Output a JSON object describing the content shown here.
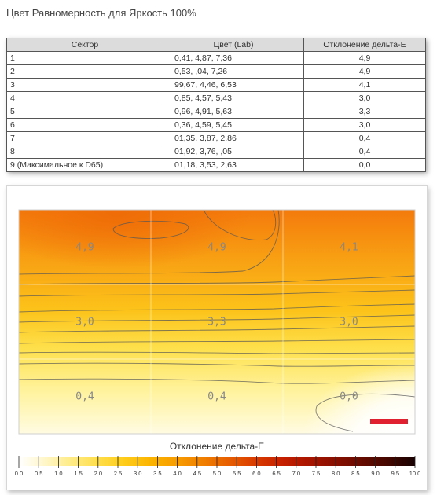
{
  "title": "Цвет Равномерность для Яркость 100%",
  "table": {
    "headers": [
      "Сектор",
      "Цвет (Lab)",
      "Отклонение дельта-E"
    ],
    "rows": [
      {
        "sector": "1",
        "lab": "0,41,   4,87,   7,36",
        "de": "4,9"
      },
      {
        "sector": "2",
        "lab": "0,53,   ,04,   7,26",
        "de": "4,9"
      },
      {
        "sector": "3",
        "lab": "99,67,   4,46,   6,53",
        "de": "4,1"
      },
      {
        "sector": "4",
        "lab": "0,85,   4,57,   5,43",
        "de": "3,0"
      },
      {
        "sector": "5",
        "lab": "0,96,   4,91,   5,63",
        "de": "3,3"
      },
      {
        "sector": "6",
        "lab": "0,36,   4,59,   5,45",
        "de": "3,0"
      },
      {
        "sector": "7",
        "lab": "01,35,   3,87,   2,86",
        "de": "0,4"
      },
      {
        "sector": "8",
        "lab": "01,92,   3,76,    ,05",
        "de": "0,4"
      },
      {
        "sector": "9 (Максимальное к D65)",
        "lab": "01,18,   3,53,   2,63",
        "de": "0,0"
      }
    ]
  },
  "chart_data": {
    "type": "heatmap",
    "grid": {
      "rows": 3,
      "cols": 3
    },
    "sector_values": [
      [
        4.9,
        4.9,
        4.1
      ],
      [
        3.0,
        3.3,
        3.0
      ],
      [
        0.4,
        0.4,
        0.0
      ]
    ],
    "sector_labels": [
      [
        "4,9",
        "4,9",
        "4,1"
      ],
      [
        "3,0",
        "3,3",
        "3,0"
      ],
      [
        "0,4",
        "0,4",
        "0,0"
      ]
    ],
    "colorbar": {
      "title": "Отклонение дельта-E",
      "min": 0.0,
      "max": 10.0,
      "ticks": [
        "0.0",
        "0.5",
        "1.0",
        "1.5",
        "2.0",
        "2.5",
        "3.0",
        "3.5",
        "4.0",
        "4.5",
        "5.0",
        "5.5",
        "6.0",
        "6.5",
        "7.0",
        "7.5",
        "8.0",
        "8.5",
        "9.0",
        "9.5",
        "10.0"
      ],
      "colors": [
        "#ffffff",
        "#fff6c8",
        "#ffeb85",
        "#ffde4a",
        "#ffcc1a",
        "#fbb400",
        "#f79c00",
        "#f07e00",
        "#e65c00",
        "#d93a00",
        "#c51f00",
        "#a81500",
        "#880f00",
        "#650b00",
        "#420700",
        "#180202"
      ]
    },
    "marker_color": "#e0202e"
  }
}
